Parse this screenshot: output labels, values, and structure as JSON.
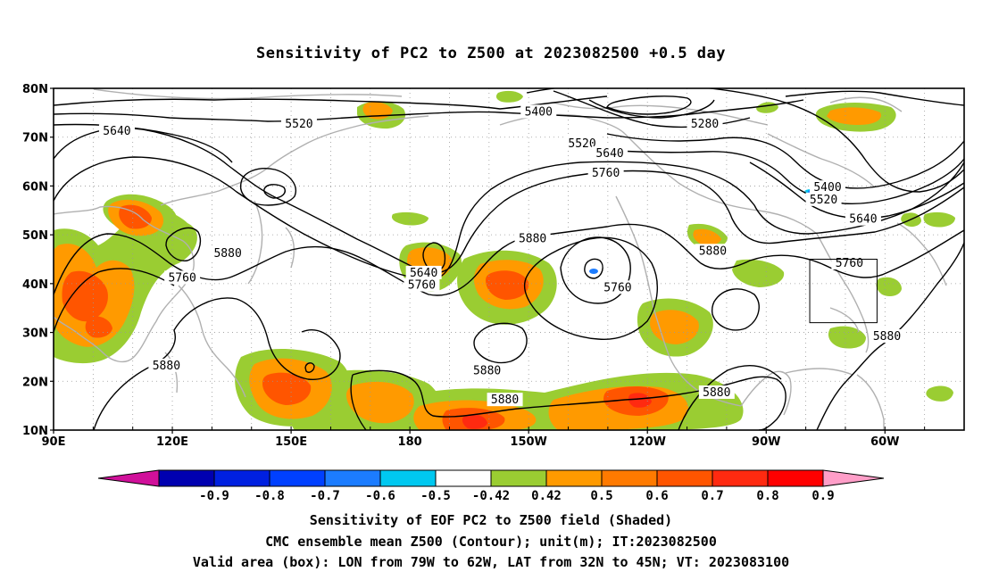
{
  "title": "Sensitivity of PC2 to Z500 at 2023082500 +0.5 day",
  "captions": [
    "Sensitivity of EOF PC2 to Z500 field (Shaded)",
    "CMC ensemble mean Z500 (Contour); unit(m); IT:2023082500",
    "Valid area (box): LON from 79W to 62W, LAT from 32N to 45N; VT: 2023083100"
  ],
  "map": {
    "lon_range": [
      90,
      320
    ],
    "lat_range": [
      10,
      80
    ],
    "lat_ticks": [
      {
        "lat": 80,
        "label": "80N"
      },
      {
        "lat": 70,
        "label": "70N"
      },
      {
        "lat": 60,
        "label": "60N"
      },
      {
        "lat": 50,
        "label": "50N"
      },
      {
        "lat": 40,
        "label": "40N"
      },
      {
        "lat": 30,
        "label": "30N"
      },
      {
        "lat": 20,
        "label": "20N"
      },
      {
        "lat": 10,
        "label": "10N"
      }
    ],
    "lon_ticks": [
      {
        "lon": 90,
        "label": "90E"
      },
      {
        "lon": 120,
        "label": "120E"
      },
      {
        "lon": 150,
        "label": "150E"
      },
      {
        "lon": 180,
        "label": "180"
      },
      {
        "lon": 210,
        "label": "150W"
      },
      {
        "lon": 240,
        "label": "120W"
      },
      {
        "lon": 270,
        "label": "90W"
      },
      {
        "lon": 300,
        "label": "60W"
      }
    ],
    "valid_box": {
      "lon_min": 281,
      "lon_max": 298,
      "lat_min": 32,
      "lat_max": 45
    },
    "grid": "dotted",
    "coastline_color": "#b0b0b0",
    "contour_color": "#000000"
  },
  "colorbar": {
    "colors": [
      "#d0109a",
      "#0000b0",
      "#0020e0",
      "#0040ff",
      "#1c7cff",
      "#00c8f0",
      "#ffffff",
      "#9acd32",
      "#ff9a00",
      "#ff7a00",
      "#ff5500",
      "#ff2a10",
      "#ff0000",
      "#ff9ec8"
    ],
    "labels": [
      "-0.9",
      "-0.8",
      "-0.7",
      "-0.6",
      "-0.5",
      "-0.42",
      "0.42",
      "0.5",
      "0.6",
      "0.7",
      "0.8",
      "0.9"
    ]
  },
  "contour_labels": [
    {
      "text": "5640",
      "lon": 106,
      "lat": 71
    },
    {
      "text": "5520",
      "lon": 152,
      "lat": 72.5
    },
    {
      "text": "5400",
      "lon": 212.5,
      "lat": 75
    },
    {
      "text": "5280",
      "lon": 254.5,
      "lat": 72.5
    },
    {
      "text": "5520",
      "lon": 223.5,
      "lat": 68.5
    },
    {
      "text": "5640",
      "lon": 230.5,
      "lat": 66.5
    },
    {
      "text": "5760",
      "lon": 229.5,
      "lat": 62.5
    },
    {
      "text": "5400",
      "lon": 285.5,
      "lat": 59.5
    },
    {
      "text": "5520",
      "lon": 284.5,
      "lat": 57
    },
    {
      "text": "5640",
      "lon": 294.5,
      "lat": 53
    },
    {
      "text": "5760",
      "lon": 291,
      "lat": 44
    },
    {
      "text": "5880",
      "lon": 300.5,
      "lat": 29
    },
    {
      "text": "5880",
      "lon": 211,
      "lat": 49
    },
    {
      "text": "5880",
      "lon": 134,
      "lat": 46
    },
    {
      "text": "5760",
      "lon": 122.5,
      "lat": 41
    },
    {
      "text": "5640",
      "lon": 183.5,
      "lat": 42
    },
    {
      "text": "5760",
      "lon": 183,
      "lat": 39.5
    },
    {
      "text": "5760",
      "lon": 232.5,
      "lat": 39
    },
    {
      "text": "5880",
      "lon": 256.5,
      "lat": 46.5
    },
    {
      "text": "5880",
      "lon": 118.5,
      "lat": 23
    },
    {
      "text": "5880",
      "lon": 199.5,
      "lat": 22
    },
    {
      "text": "5880",
      "lon": 204,
      "lat": 16
    },
    {
      "text": "5880",
      "lon": 257.5,
      "lat": 17.5
    }
  ]
}
